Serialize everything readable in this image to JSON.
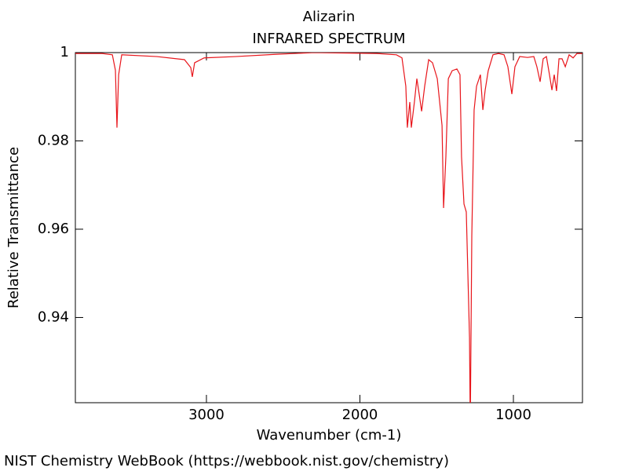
{
  "chart_data": {
    "type": "line",
    "title": "Alizarin",
    "subtitle": "INFRARED SPECTRUM",
    "x_label": "Wavenumber (cm-1)",
    "y_label": "Relative Transmittance",
    "footer": "NIST Chemistry WebBook (https://webbook.nist.gov/chemistry)",
    "color": "#e8151b",
    "xlim": [
      3854,
      550
    ],
    "ylim": [
      0.9207,
      1
    ],
    "xticks": [
      3000,
      2000,
      1000
    ],
    "yticks": [
      1,
      0.98,
      0.96,
      0.94
    ],
    "x": [
      3854,
      3680,
      3613,
      3593,
      3583,
      3572,
      3552,
      3322,
      3143,
      3102,
      3092,
      3077,
      3015,
      2811,
      2555,
      2299,
      1890,
      1762,
      1726,
      1701,
      1691,
      1675,
      1665,
      1645,
      1629,
      1614,
      1598,
      1578,
      1552,
      1527,
      1496,
      1465,
      1455,
      1440,
      1424,
      1399,
      1368,
      1348,
      1338,
      1322,
      1307,
      1286,
      1281,
      1271,
      1256,
      1240,
      1215,
      1199,
      1184,
      1164,
      1133,
      1097,
      1061,
      1036,
      1010,
      990,
      959,
      908,
      867,
      847,
      826,
      806,
      785,
      765,
      749,
      734,
      719,
      703,
      683,
      662,
      637,
      611,
      586,
      550
    ],
    "values": [
      0.9998,
      0.9998,
      0.9995,
      0.996,
      0.983,
      0.995,
      0.9995,
      0.9991,
      0.9984,
      0.9966,
      0.9945,
      0.9977,
      0.9988,
      0.9991,
      0.9996,
      1.0,
      0.9998,
      0.9995,
      0.9988,
      0.9924,
      0.983,
      0.9888,
      0.983,
      0.9888,
      0.9941,
      0.9906,
      0.9867,
      0.9924,
      0.9984,
      0.9977,
      0.9941,
      0.9835,
      0.9648,
      0.9764,
      0.9941,
      0.9959,
      0.9963,
      0.995,
      0.9764,
      0.9657,
      0.9639,
      0.9355,
      0.915,
      0.9586,
      0.987,
      0.9924,
      0.995,
      0.987,
      0.9915,
      0.9959,
      0.9995,
      0.9998,
      0.9995,
      0.9968,
      0.9906,
      0.9968,
      0.9991,
      0.9989,
      0.9991,
      0.9968,
      0.9934,
      0.9986,
      0.9991,
      0.995,
      0.9915,
      0.995,
      0.9913,
      0.9986,
      0.9986,
      0.9968,
      0.9995,
      0.9988,
      0.9998,
      0.9998
    ]
  }
}
